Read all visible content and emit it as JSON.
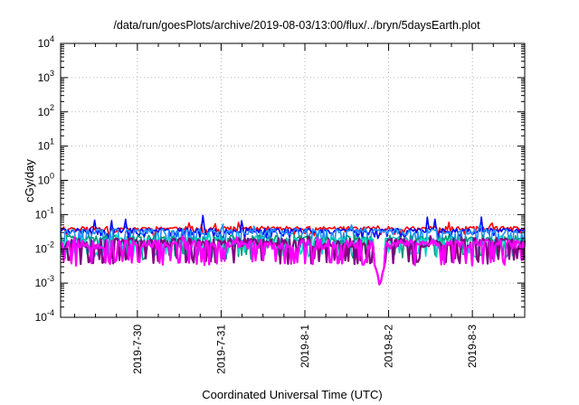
{
  "chart_data": {
    "type": "line",
    "title": "/data/run/goesPlots/archive/2019-08-03/13:00/flux/../bryn/5daysEarth.plot",
    "xlabel": "Coordinated Universal Time (UTC)",
    "ylabel": "cGy/day",
    "yscale": "log",
    "ylim": [
      0.0001,
      10000
    ],
    "xlim": [
      "2019-07-29 02:00",
      "2019-08-03 15:00"
    ],
    "grid": true,
    "legend": "none",
    "x_ticks": [
      "2019-7-30",
      "2019-7-31",
      "2019-8-1",
      "2019-8-2",
      "2019-8-3"
    ],
    "y_ticks": [
      {
        "base": "10",
        "exp": "-4"
      },
      {
        "base": "10",
        "exp": "-3"
      },
      {
        "base": "10",
        "exp": "-2"
      },
      {
        "base": "10",
        "exp": "-1"
      },
      {
        "base": "10",
        "exp": "0"
      },
      {
        "base": "10",
        "exp": "1"
      },
      {
        "base": "10",
        "exp": "2"
      },
      {
        "base": "10",
        "exp": "3"
      },
      {
        "base": "10",
        "exp": "4"
      }
    ],
    "series": [
      {
        "color": "#ff0000",
        "base": 0.04,
        "low": 0.03,
        "amp": 0.05,
        "jitter": 0.12,
        "seed": 11
      },
      {
        "color": "#0000ff",
        "base": 0.035,
        "low": 0.025,
        "amp": 0.08,
        "jitter": 0.15,
        "seed": 23
      },
      {
        "color": "#1e90ff",
        "base": 0.032,
        "low": 0.012,
        "amp": 0.045,
        "jitter": 0.2,
        "seed": 37
      },
      {
        "color": "#009977",
        "base": 0.02,
        "low": 0.006,
        "amp": 0.02,
        "jitter": 0.25,
        "seed": 41
      },
      {
        "color": "#00d4c8",
        "base": 0.018,
        "low": 0.007,
        "amp": 0.025,
        "jitter": 0.25,
        "seed": 53
      },
      {
        "color": "#800080",
        "base": 0.016,
        "low": 0.0045,
        "amp": 0.02,
        "jitter": 0.3,
        "seed": 67
      },
      {
        "color": "#ff00ff",
        "base": 0.014,
        "low": 0.004,
        "amp": 0.02,
        "jitter": 0.3,
        "seed": 79
      }
    ],
    "dip": {
      "x": "2019-08-01 21:30",
      "min": 0.0006
    }
  }
}
